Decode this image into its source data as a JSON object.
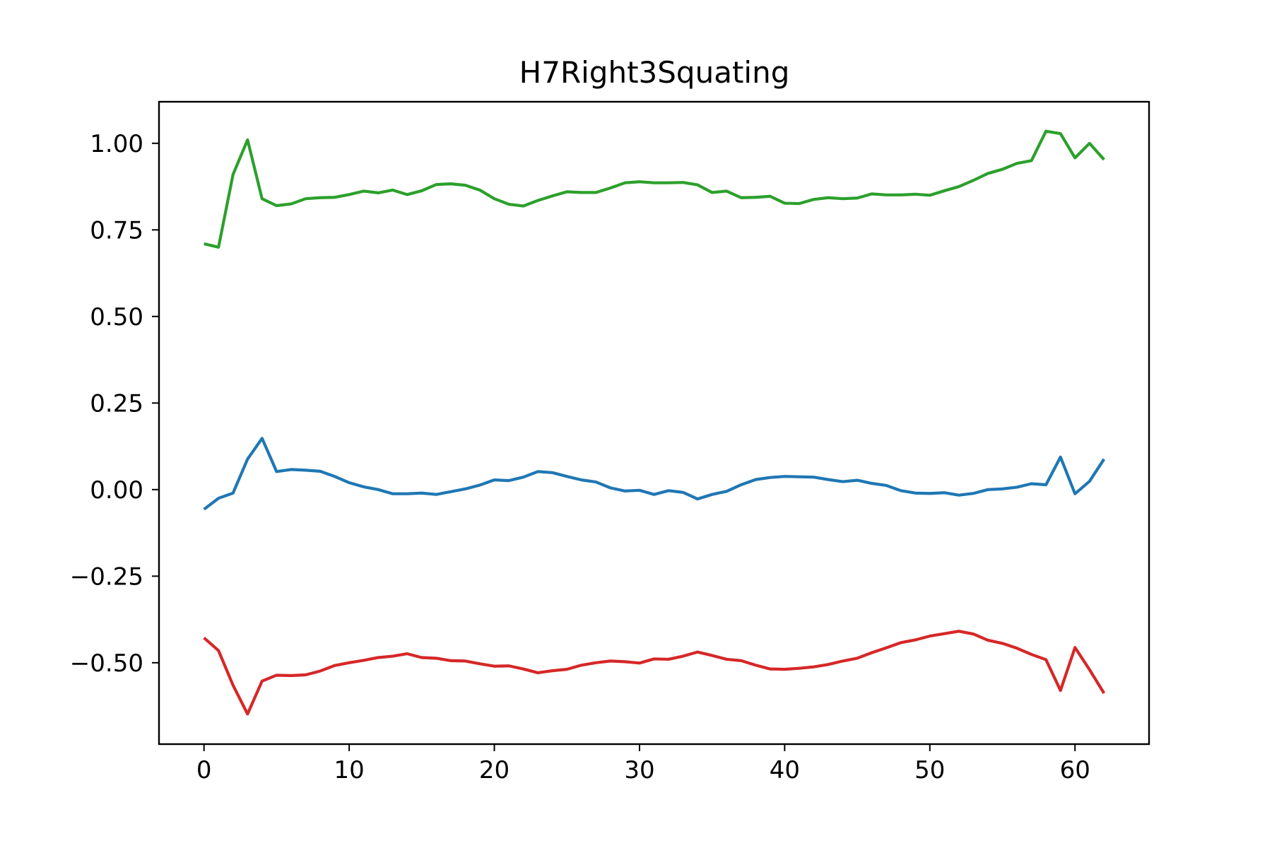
{
  "chart_data": {
    "type": "line",
    "title": "H7Right3Squating",
    "xlabel": "",
    "ylabel": "",
    "xlim": [
      -3.1,
      65.1
    ],
    "ylim": [
      -0.735,
      1.12
    ],
    "x_ticks": [
      0,
      10,
      20,
      30,
      40,
      50,
      60
    ],
    "x_tick_labels": [
      "0",
      "10",
      "20",
      "30",
      "40",
      "50",
      "60"
    ],
    "y_ticks": [
      1.0,
      0.75,
      0.5,
      0.25,
      0.0,
      -0.25,
      -0.5
    ],
    "y_tick_labels": [
      "1.00",
      "0.75",
      "0.50",
      "0.25",
      "0.00",
      "−0.25",
      "−0.50"
    ],
    "grid": false,
    "series": [
      {
        "color": "#2ca02c",
        "x": [
          0,
          1,
          2,
          3,
          4,
          5,
          6,
          7,
          8,
          9,
          10,
          11,
          12,
          13,
          14,
          15,
          16,
          17,
          18,
          19,
          20,
          21,
          22,
          23,
          24,
          25,
          26,
          27,
          28,
          29,
          30,
          31,
          32,
          33,
          34,
          35,
          36,
          37,
          38,
          39,
          40,
          41,
          42,
          43,
          44,
          45,
          46,
          47,
          48,
          49,
          50,
          51,
          52,
          53,
          54,
          55,
          56,
          57,
          58,
          59,
          60,
          61,
          62
        ],
        "values": [
          0.71,
          0.7,
          0.91,
          1.01,
          0.84,
          0.82,
          0.825,
          0.84,
          0.843,
          0.844,
          0.852,
          0.862,
          0.857,
          0.865,
          0.852,
          0.863,
          0.881,
          0.883,
          0.879,
          0.865,
          0.84,
          0.824,
          0.819,
          0.835,
          0.848,
          0.86,
          0.858,
          0.858,
          0.871,
          0.886,
          0.889,
          0.886,
          0.886,
          0.887,
          0.88,
          0.858,
          0.862,
          0.843,
          0.844,
          0.847,
          0.827,
          0.826,
          0.838,
          0.843,
          0.84,
          0.842,
          0.854,
          0.851,
          0.851,
          0.853,
          0.85,
          0.863,
          0.875,
          0.893,
          0.913,
          0.925,
          0.942,
          0.95,
          1.035,
          1.028,
          0.958,
          1.0,
          0.953
        ]
      },
      {
        "color": "#1f77b4",
        "x": [
          0,
          1,
          2,
          3,
          4,
          5,
          6,
          7,
          8,
          9,
          10,
          11,
          12,
          13,
          14,
          15,
          16,
          17,
          18,
          19,
          20,
          21,
          22,
          23,
          24,
          25,
          26,
          27,
          28,
          29,
          30,
          31,
          32,
          33,
          34,
          35,
          36,
          37,
          38,
          39,
          40,
          41,
          42,
          43,
          44,
          45,
          46,
          47,
          48,
          49,
          50,
          51,
          52,
          53,
          54,
          55,
          56,
          57,
          58,
          59,
          60,
          61,
          62
        ],
        "values": [
          -0.057,
          -0.025,
          -0.01,
          0.088,
          0.148,
          0.052,
          0.058,
          0.056,
          0.053,
          0.038,
          0.02,
          0.008,
          0.0,
          -0.012,
          -0.012,
          -0.01,
          -0.014,
          -0.006,
          0.002,
          0.013,
          0.028,
          0.026,
          0.036,
          0.052,
          0.049,
          0.038,
          0.028,
          0.022,
          0.005,
          -0.004,
          -0.002,
          -0.014,
          -0.003,
          -0.008,
          -0.027,
          -0.014,
          -0.005,
          0.014,
          0.029,
          0.035,
          0.038,
          0.037,
          0.036,
          0.029,
          0.023,
          0.027,
          0.018,
          0.012,
          -0.003,
          -0.01,
          -0.011,
          -0.009,
          -0.016,
          -0.011,
          0.0,
          0.002,
          0.007,
          0.017,
          0.014,
          0.094,
          -0.012,
          0.024,
          0.088
        ]
      },
      {
        "color": "#d62728",
        "x": [
          0,
          1,
          2,
          3,
          4,
          5,
          6,
          7,
          8,
          9,
          10,
          11,
          12,
          13,
          14,
          15,
          16,
          17,
          18,
          19,
          20,
          21,
          22,
          23,
          24,
          25,
          26,
          27,
          28,
          29,
          30,
          31,
          32,
          33,
          34,
          35,
          36,
          37,
          38,
          39,
          40,
          41,
          42,
          43,
          44,
          45,
          46,
          47,
          48,
          49,
          50,
          51,
          52,
          53,
          54,
          55,
          56,
          57,
          58,
          59,
          60,
          61,
          62
        ],
        "values": [
          -0.428,
          -0.465,
          -0.565,
          -0.648,
          -0.553,
          -0.536,
          -0.537,
          -0.535,
          -0.524,
          -0.508,
          -0.5,
          -0.493,
          -0.485,
          -0.481,
          -0.474,
          -0.485,
          -0.487,
          -0.494,
          -0.495,
          -0.503,
          -0.51,
          -0.509,
          -0.518,
          -0.529,
          -0.523,
          -0.519,
          -0.507,
          -0.5,
          -0.495,
          -0.497,
          -0.501,
          -0.489,
          -0.49,
          -0.481,
          -0.469,
          -0.479,
          -0.49,
          -0.494,
          -0.507,
          -0.518,
          -0.519,
          -0.516,
          -0.512,
          -0.505,
          -0.495,
          -0.487,
          -0.471,
          -0.457,
          -0.442,
          -0.434,
          -0.423,
          -0.416,
          -0.409,
          -0.417,
          -0.435,
          -0.444,
          -0.458,
          -0.476,
          -0.491,
          -0.58,
          -0.456,
          -0.52,
          -0.588
        ]
      }
    ]
  }
}
